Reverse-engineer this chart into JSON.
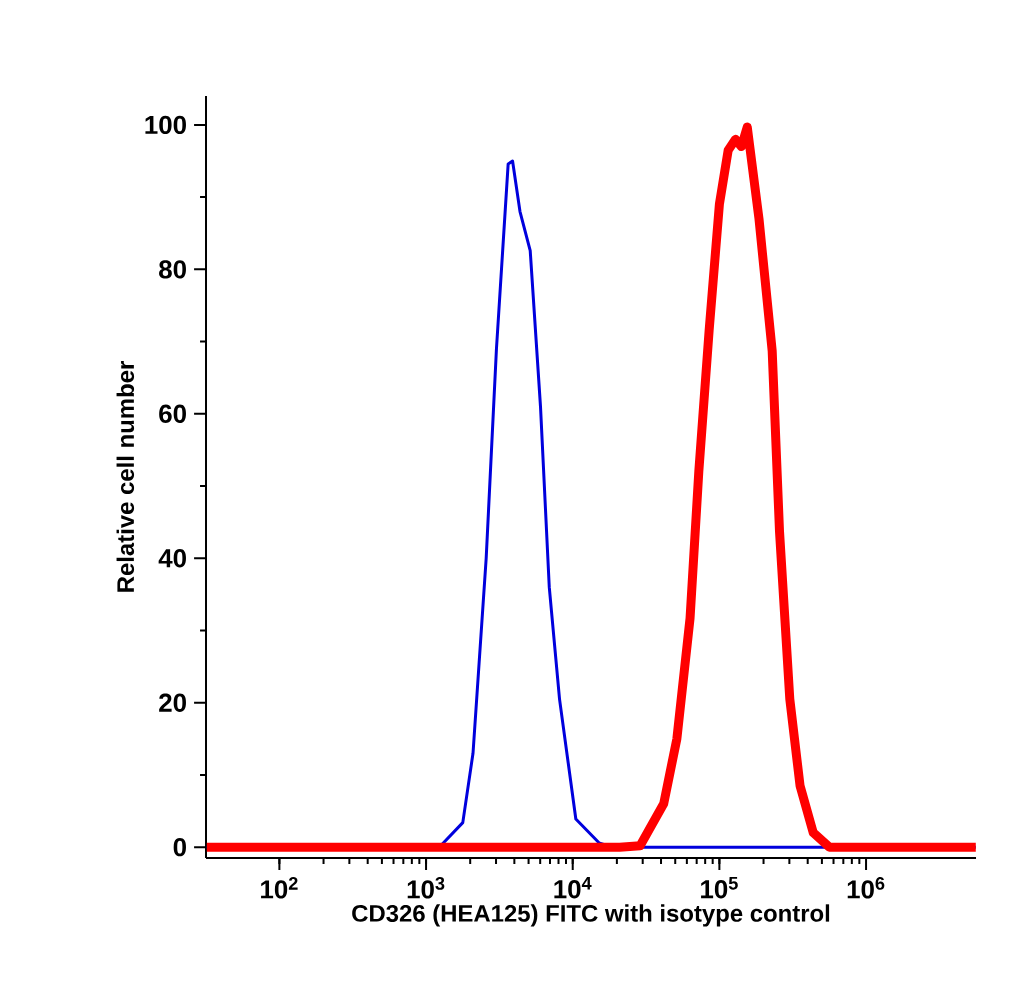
{
  "chart_data": {
    "type": "line",
    "xlabel": "CD326 (HEA125) FITC with isotype control",
    "ylabel": "Relative cell number",
    "log": "x",
    "marker": "none",
    "line_style": "solid",
    "xlim": [
      31.6,
      5620000
    ],
    "ylim": [
      -1.5,
      104
    ],
    "xticks": [
      {
        "value": 100,
        "label": "10$^{2}$"
      },
      {
        "value": 1000,
        "label": "10$^{3}$"
      },
      {
        "value": 10000,
        "label": "10$^{4}$"
      },
      {
        "value": 100000,
        "label": "10$^{5}$"
      },
      {
        "value": 1000000,
        "label": "10$^{6}$"
      }
    ],
    "yticks": [
      0,
      20,
      40,
      60,
      80,
      100
    ],
    "series": [
      {
        "color": "#0000dd",
        "x": [
          32,
          1230,
          1780,
          2090,
          2570,
          3020,
          3630,
          3890,
          4370,
          5130,
          6030,
          6920,
          8130,
          10500,
          15100,
          18600,
          5600000
        ],
        "values": [
          0,
          0,
          3.4,
          13,
          40,
          69,
          94.6,
          95,
          88,
          82.6,
          61,
          36,
          20.5,
          3.9,
          0.6,
          0,
          0
        ]
      },
      {
        "color": "#ff0000",
        "x": [
          32,
          20900,
          28800,
          41700,
          51300,
          63100,
          72400,
          85100,
          100000,
          114800,
          128800,
          141300,
          154900,
          186200,
          229100,
          257000,
          302000,
          354800,
          436500,
          562000,
          5600000
        ],
        "values": [
          0,
          0,
          0.2,
          6,
          15,
          31.7,
          52,
          71.5,
          89,
          96.5,
          98,
          97,
          99.7,
          87,
          68.7,
          43.7,
          20.5,
          8.5,
          2,
          0,
          0
        ]
      }
    ]
  }
}
